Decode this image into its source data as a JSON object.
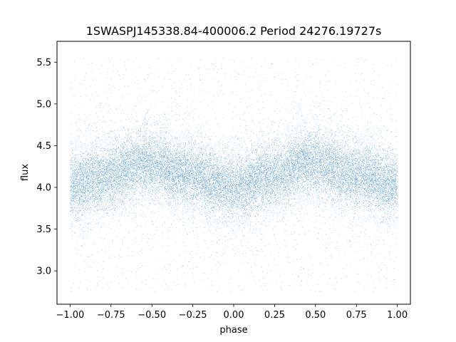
{
  "chart_data": {
    "type": "scatter",
    "title": "1SWASPJ145338.84-400006.2 Period 24276.19727s",
    "xlabel": "phase",
    "ylabel": "flux",
    "xlim": [
      -1.08,
      1.08
    ],
    "ylim": [
      2.6,
      5.75
    ],
    "x_ticks": [
      -1.0,
      -0.75,
      -0.5,
      -0.25,
      0.0,
      0.25,
      0.5,
      0.75,
      1.0
    ],
    "x_tick_labels": [
      "−1.00",
      "−0.75",
      "−0.50",
      "−0.25",
      "0.00",
      "0.25",
      "0.50",
      "0.75",
      "1.00"
    ],
    "y_ticks": [
      3.0,
      3.5,
      4.0,
      4.5,
      5.0,
      5.5
    ],
    "y_tick_labels": [
      "3.0",
      "3.5",
      "4.0",
      "4.5",
      "5.0",
      "5.5"
    ],
    "grid": false,
    "marker_color": "#1f77b4",
    "series": [
      {
        "phase_range": [
          -1.0,
          1.0
        ],
        "mean_flux_min": 4.0,
        "mean_flux_max": 4.3,
        "mean_flux_profile": [
          {
            "phase": -1.0,
            "flux": 4.03
          },
          {
            "phase": -0.75,
            "flux": 4.15
          },
          {
            "phase": -0.55,
            "flux": 4.3
          },
          {
            "phase": -0.25,
            "flux": 4.15
          },
          {
            "phase": 0.0,
            "flux": 4.0
          },
          {
            "phase": 0.25,
            "flux": 4.15
          },
          {
            "phase": 0.45,
            "flux": 4.3
          },
          {
            "phase": 0.75,
            "flux": 4.15
          },
          {
            "phase": 1.0,
            "flux": 4.03
          }
        ],
        "flux_scatter_sigma": 0.19,
        "flux_outlier_range": [
          2.75,
          5.55
        ],
        "point_count": 26000
      }
    ]
  }
}
